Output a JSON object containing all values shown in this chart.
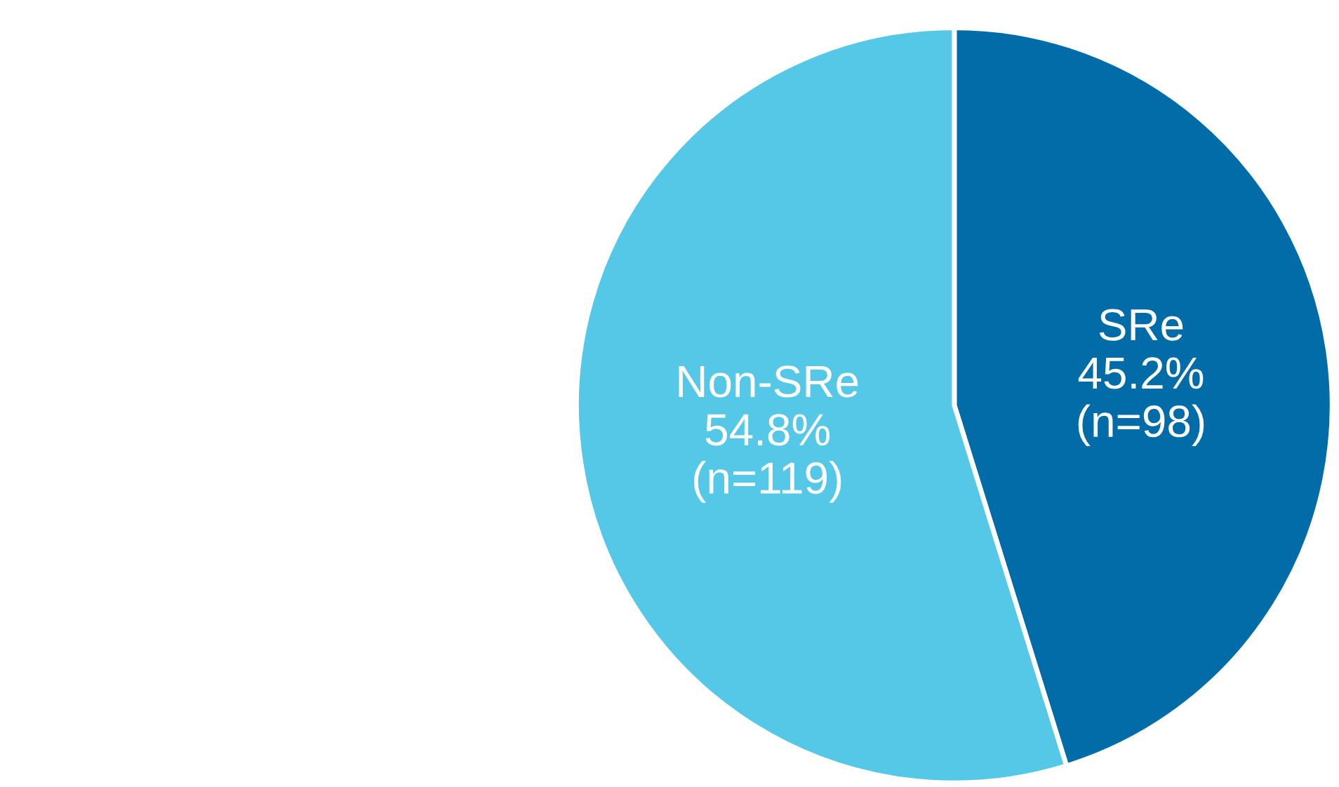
{
  "chart_data": {
    "type": "pie",
    "categories": [
      "SRe",
      "Non-SRe"
    ],
    "values": [
      45.2,
      54.8
    ],
    "value_labels": [
      "45.2%\n(n=98)",
      "54.8%\n(n=119)"
    ],
    "colors": [
      "#016ca8",
      "#55c8e8"
    ]
  }
}
